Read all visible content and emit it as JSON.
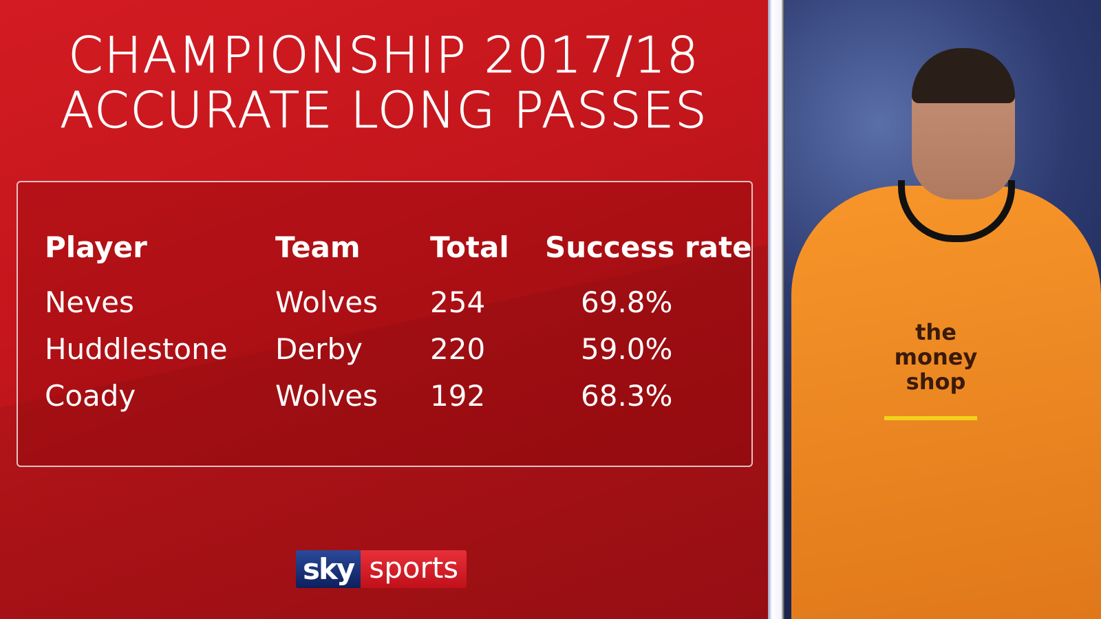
{
  "title": {
    "line1": "CHAMPIONSHIP 2017/18",
    "line2": "ACCURATE LONG PASSES"
  },
  "table": {
    "headers": [
      "Player",
      "Team",
      "Total",
      "Success rate"
    ],
    "rows": [
      {
        "player": "Neves",
        "team": "Wolves",
        "total": "254",
        "rate": "69.8%"
      },
      {
        "player": "Huddlestone",
        "team": "Derby",
        "total": "220",
        "rate": "59.0%"
      },
      {
        "player": "Coady",
        "team": "Wolves",
        "total": "192",
        "rate": "68.3%"
      }
    ]
  },
  "logo": {
    "sky": "sky",
    "sports": "sports"
  },
  "photo": {
    "sponsor": "the money shop"
  },
  "colors": {
    "background": "#c3161c",
    "sky_blue": "#0e1f5c",
    "shirt": "#f7962a"
  }
}
